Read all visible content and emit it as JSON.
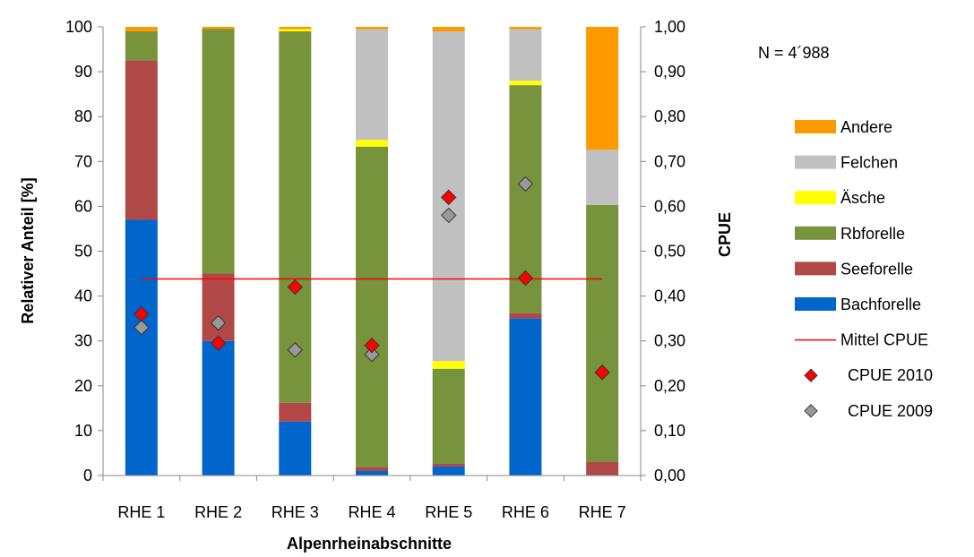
{
  "chart_data": {
    "type": "bar",
    "stacked": true,
    "categories": [
      "RHE 1",
      "RHE 2",
      "RHE 3",
      "RHE 4",
      "RHE 5",
      "RHE 6",
      "RHE 7"
    ],
    "series": [
      {
        "name": "Bachforelle",
        "color": "#0066CC",
        "values": [
          57,
          30,
          12,
          1,
          2,
          35,
          0
        ]
      },
      {
        "name": "Seeforelle",
        "color": "#B04848",
        "values": [
          35.5,
          15,
          4.2,
          0.8,
          0.6,
          1.2,
          3
        ]
      },
      {
        "name": "Rbforelle",
        "color": "#77933C",
        "values": [
          6.5,
          54.5,
          82.8,
          71.5,
          21.2,
          50.8,
          57.3
        ]
      },
      {
        "name": "Äsche",
        "color": "#FFFF00",
        "values": [
          0,
          0,
          0.5,
          1.5,
          1.7,
          1,
          0
        ]
      },
      {
        "name": "Felchen",
        "color": "#C0C0C0",
        "values": [
          0,
          0,
          0,
          24.7,
          73.5,
          11.5,
          12.3
        ]
      },
      {
        "name": "Andere",
        "color": "#FF9900",
        "values": [
          1,
          0.5,
          0.5,
          0.5,
          1,
          0.5,
          27.4
        ]
      }
    ],
    "cpue_2010": {
      "name": "CPUE 2010",
      "values": [
        0.36,
        0.295,
        0.42,
        0.29,
        0.62,
        0.44,
        0.23
      ]
    },
    "cpue_2009": {
      "name": "CPUE 2009",
      "values": [
        0.33,
        0.34,
        0.28,
        0.27,
        0.58,
        0.65,
        null
      ]
    },
    "mittel_cpue": {
      "name": "Mittel CPUE",
      "value": 0.438
    },
    "legend_order": [
      "Andere",
      "Felchen",
      "Äsche",
      "Rbforelle",
      "Seeforelle",
      "Bachforelle",
      "Mittel CPUE",
      "CPUE 2010",
      "CPUE 2009"
    ],
    "xlabel": "Alpenrheinabschnitte",
    "ylabel": "Relativer Anteil [%]",
    "y2label": "CPUE",
    "ylim": [
      0,
      100
    ],
    "yticks": [
      "0",
      "10",
      "20",
      "30",
      "40",
      "50",
      "60",
      "70",
      "80",
      "90",
      "100"
    ],
    "y2lim": [
      0,
      1
    ],
    "y2ticks": [
      "0,00",
      "0,10",
      "0,20",
      "0,30",
      "0,40",
      "0,50",
      "0,60",
      "0,70",
      "0,80",
      "0,90",
      "1,00"
    ],
    "annotation": "N = 4´988",
    "grid": false,
    "legend_position": "right"
  },
  "colors": {
    "mittel_line": "#FF0000",
    "cpue_2010_fill": "#FF0000",
    "cpue_2009_fill": "#999999"
  }
}
